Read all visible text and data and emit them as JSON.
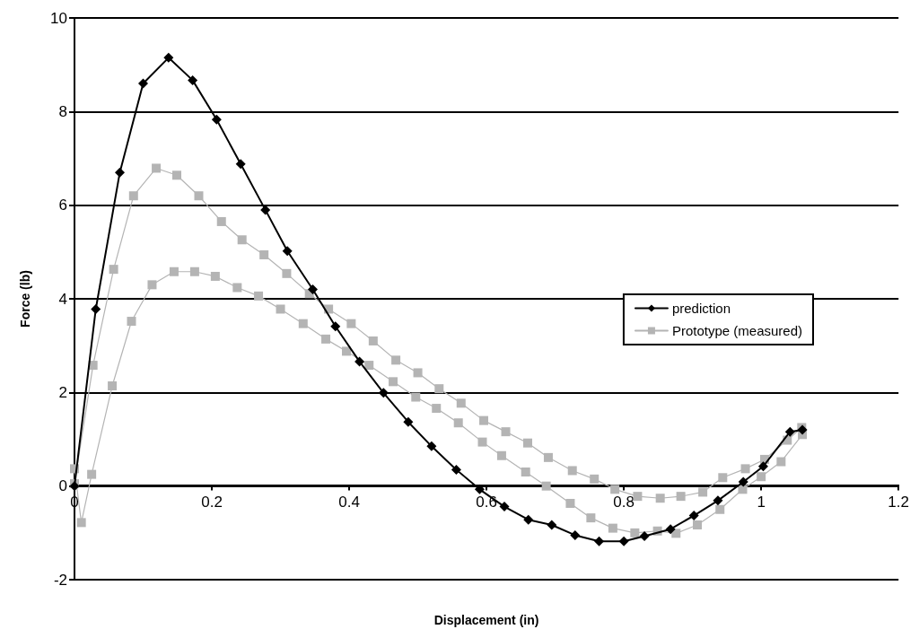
{
  "chart_data": {
    "type": "line",
    "xlabel": "Displacement (in)",
    "ylabel": "Force (lb)",
    "xlim": [
      0,
      1.2
    ],
    "xticks": [
      0,
      0.2,
      0.4,
      0.6,
      0.8,
      1,
      1.2
    ],
    "ylim": [
      -2,
      10
    ],
    "yticks": [
      -2,
      0,
      2,
      4,
      6,
      8,
      10
    ],
    "grid": "y",
    "legend": "right",
    "series": [
      {
        "name": "prediction",
        "color": "#000000",
        "marker": "diamond",
        "x": [
          0,
          0.031,
          0.066,
          0.1,
          0.137,
          0.172,
          0.207,
          0.242,
          0.278,
          0.31,
          0.347,
          0.38,
          0.415,
          0.45,
          0.486,
          0.52,
          0.556,
          0.59,
          0.626,
          0.661,
          0.695,
          0.729,
          0.764,
          0.8,
          0.83,
          0.868,
          0.902,
          0.937,
          0.974,
          1.003,
          1.042,
          1.06
        ],
        "values": [
          0,
          3.78,
          6.7,
          8.6,
          9.15,
          8.67,
          7.83,
          6.88,
          5.9,
          5.02,
          4.2,
          3.41,
          2.66,
          1.99,
          1.37,
          0.85,
          0.35,
          -0.07,
          -0.44,
          -0.72,
          -0.83,
          -1.05,
          -1.18,
          -1.18,
          -1.07,
          -0.92,
          -0.63,
          -0.31,
          0.09,
          0.42,
          1.16,
          1.2
        ]
      },
      {
        "name": "Prototype (measured)",
        "color": "#b4b4b4",
        "marker": "square",
        "x": [
          0,
          0.027,
          0.057,
          0.086,
          0.119,
          0.149,
          0.181,
          0.214,
          0.244,
          0.276,
          0.309,
          0.342,
          0.37,
          0.403,
          0.435,
          0.468,
          0.5,
          0.531,
          0.563,
          0.596,
          0.628,
          0.66,
          0.69,
          0.725,
          0.757,
          0.787,
          0.82,
          0.853,
          0.883,
          0.915,
          0.944,
          0.977,
          1.005,
          1.038,
          1.059,
          1.06,
          1.029,
          1,
          0.973,
          0.94,
          0.907,
          0.876,
          0.849,
          0.816,
          0.784,
          0.752,
          0.722,
          0.687,
          0.657,
          0.622,
          0.594,
          0.559,
          0.527,
          0.497,
          0.464,
          0.429,
          0.396,
          0.366,
          0.333,
          0.3,
          0.268,
          0.237,
          0.205,
          0.175,
          0.145,
          0.113,
          0.083,
          0.055,
          0.025,
          0.01,
          0
        ],
        "values": [
          0.05,
          2.58,
          4.63,
          6.2,
          6.79,
          6.64,
          6.2,
          5.65,
          5.26,
          4.94,
          4.54,
          4.11,
          3.78,
          3.47,
          3.1,
          2.69,
          2.42,
          2.08,
          1.77,
          1.4,
          1.16,
          0.92,
          0.61,
          0.33,
          0.15,
          -0.07,
          -0.22,
          -0.26,
          -0.22,
          -0.13,
          0.18,
          0.37,
          0.57,
          0.98,
          1.25,
          1.1,
          0.52,
          0.2,
          -0.07,
          -0.5,
          -0.83,
          -1.01,
          -0.96,
          -1,
          -0.9,
          -0.68,
          -0.37,
          0,
          0.3,
          0.65,
          0.94,
          1.35,
          1.66,
          1.9,
          2.23,
          2.58,
          2.88,
          3.14,
          3.47,
          3.78,
          4.06,
          4.24,
          4.48,
          4.58,
          4.58,
          4.3,
          3.52,
          2.14,
          0.25,
          -0.78,
          0.37
        ]
      }
    ]
  }
}
